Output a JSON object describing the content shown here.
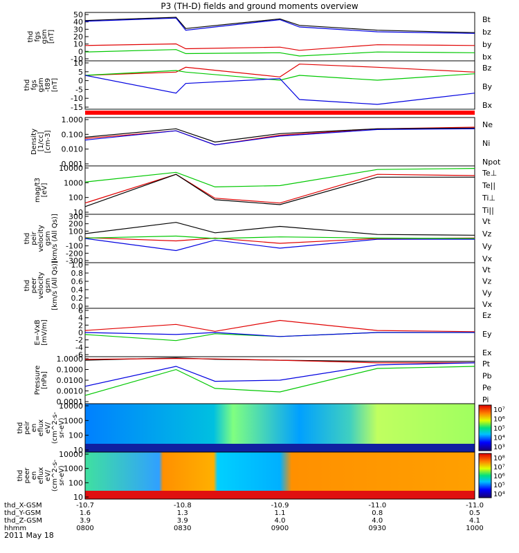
{
  "title": "P3 (TH-D) fields and ground moments overview",
  "date": "2011 May 18",
  "colors": {
    "black": "#000000",
    "red": "#e00000",
    "green": "#00c800",
    "blue": "#0000e0",
    "bar": "#ff0000"
  },
  "chart_data": {
    "type": "line",
    "x_axis": {
      "labels_rows": [
        {
          "name": "thd_X-GSM",
          "values": [
            "-10.7",
            "-10.8",
            "-10.9",
            "-11.0",
            "-11.0"
          ]
        },
        {
          "name": "thd_Y-GSM",
          "values": [
            "1.6",
            "1.3",
            "1.1",
            "0.8",
            "0.5"
          ]
        },
        {
          "name": "thd_Z-GSM",
          "values": [
            "3.9",
            "3.9",
            "4.0",
            "4.0",
            "4.1"
          ]
        },
        {
          "name": "hhmm",
          "values": [
            "0800",
            "0830",
            "0900",
            "0930",
            "1000"
          ]
        }
      ],
      "range": [
        "0800",
        "1000"
      ]
    },
    "panels": [
      {
        "id": "fgs-gsm",
        "ylabel": [
          "thd",
          "fgs",
          "gsm",
          "[nT]"
        ],
        "ticks": [
          "50",
          "40",
          "30",
          "20",
          "10",
          "0",
          "-10"
        ],
        "ylim": [
          -10,
          50
        ],
        "legend": [
          {
            "name": "Bt",
            "color": "black"
          },
          {
            "name": "bz",
            "color": "red"
          },
          {
            "name": "by",
            "color": "green"
          },
          {
            "name": "bx",
            "color": "blue"
          }
        ],
        "series": [
          {
            "name": "Bt",
            "color": "black",
            "x": [
              "0800",
              "0828",
              "0831",
              "0900",
              "0906",
              "0930",
              "1000"
            ],
            "y": [
              40,
              44,
              30,
              42,
              34,
              28,
              25
            ]
          },
          {
            "name": "bz",
            "color": "red",
            "x": [
              "0800",
              "0828",
              "0831",
              "0900",
              "0906",
              "0930",
              "1000"
            ],
            "y": [
              9,
              11,
              5,
              7,
              3,
              10,
              9
            ]
          },
          {
            "name": "by",
            "color": "green",
            "x": [
              "0800",
              "0828",
              "0831",
              "0900",
              "0906",
              "0930",
              "1000"
            ],
            "y": [
              1,
              4,
              -1,
              0,
              -4,
              1,
              0
            ]
          },
          {
            "name": "bx",
            "color": "blue",
            "x": [
              "0800",
              "0828",
              "0831",
              "0900",
              "0906",
              "0930",
              "1000"
            ],
            "y": [
              39,
              43,
              28,
              41,
              32,
              26,
              24
            ]
          }
        ]
      },
      {
        "id": "fgs-dsl",
        "ylabel": [
          "thd",
          "fgs",
          "gsm",
          "-t89",
          "[nT]"
        ],
        "ticks": [
          "10",
          "5",
          "0",
          "-5",
          "-10",
          "-15"
        ],
        "ylim": [
          -18,
          12
        ],
        "legend": [
          {
            "name": "Bz",
            "color": "red"
          },
          {
            "name": "By",
            "color": "green"
          },
          {
            "name": "Bx",
            "color": "blue"
          }
        ],
        "series": [
          {
            "name": "Bz",
            "color": "red",
            "x": [
              "0800",
              "0828",
              "0831",
              "0900",
              "0906",
              "0930",
              "1000"
            ],
            "y": [
              3,
              5,
              8,
              2,
              10,
              8,
              5
            ]
          },
          {
            "name": "By",
            "color": "green",
            "x": [
              "0800",
              "0828",
              "0831",
              "0900",
              "0906",
              "0930",
              "1000"
            ],
            "y": [
              3,
              6,
              5,
              0,
              3,
              0,
              4
            ]
          },
          {
            "name": "Bx",
            "color": "blue",
            "x": [
              "0800",
              "0828",
              "0831",
              "0900",
              "0906",
              "0930",
              "1000"
            ],
            "y": [
              3,
              -8,
              -2,
              1,
              -12,
              -15,
              -8
            ]
          }
        ]
      },
      {
        "id": "density",
        "ylabel": [
          "Density",
          "[1/cc]",
          "[cm-3]"
        ],
        "ticks": [
          "1.000",
          "0.100",
          "0.010",
          "0.001"
        ],
        "ylim": [
          0.001,
          1
        ],
        "log": true,
        "legend": [
          {
            "name": "Ne",
            "color": "red"
          },
          {
            "name": "Ni",
            "color": "black"
          },
          {
            "name": "Npot",
            "color": "blue"
          }
        ],
        "series": [
          {
            "name": "Ne",
            "color": "red",
            "x": [
              "0800",
              "0828",
              "0840",
              "0900",
              "0930",
              "1000"
            ],
            "y": [
              0.05,
              0.15,
              0.02,
              0.08,
              0.2,
              0.25
            ]
          },
          {
            "name": "Ni",
            "color": "black",
            "x": [
              "0800",
              "0828",
              "0840",
              "0900",
              "0930",
              "1000"
            ],
            "y": [
              0.06,
              0.2,
              0.03,
              0.1,
              0.2,
              0.22
            ]
          },
          {
            "name": "Npot",
            "color": "blue",
            "x": [
              "0800",
              "0828",
              "0840",
              "0900",
              "0930",
              "1000"
            ],
            "y": [
              0.04,
              0.15,
              0.02,
              0.07,
              0.18,
              0.2
            ]
          }
        ]
      },
      {
        "id": "temperature",
        "ylabel": [
          "mag/t3",
          "[eV]"
        ],
        "ticks": [
          "10000",
          "1000",
          "100",
          "10"
        ],
        "ylim": [
          10,
          10000
        ],
        "log": true,
        "legend": [
          {
            "name": "Te⊥",
            "color": "red"
          },
          {
            "name": "Te||",
            "color": "black"
          },
          {
            "name": "Ti⊥",
            "color": "black"
          },
          {
            "name": "Ti||",
            "color": "green"
          }
        ],
        "series": [
          {
            "name": "Te⊥",
            "color": "red",
            "x": [
              "0800",
              "0828",
              "0840",
              "0900",
              "0930",
              "1000"
            ],
            "y": [
              50,
              3000,
              100,
              50,
              3000,
              2500
            ]
          },
          {
            "name": "Te||",
            "color": "black",
            "x": [
              "0800",
              "0828",
              "0840",
              "0900",
              "0930",
              "1000"
            ],
            "y": [
              30,
              3000,
              80,
              40,
              2000,
              2000
            ]
          },
          {
            "name": "Ti||",
            "color": "green",
            "x": [
              "0800",
              "0828",
              "0840",
              "0900",
              "0930",
              "1000"
            ],
            "y": [
              1000,
              4000,
              500,
              600,
              6000,
              7000
            ]
          }
        ]
      },
      {
        "id": "peir-velocity",
        "ylabel": [
          "thd",
          "peir",
          "velocity",
          "gsm",
          "[km/s (All Qs)]"
        ],
        "ticks": [
          "300",
          "200",
          "100",
          "0",
          "-100",
          "-200",
          "-300"
        ],
        "ylim": [
          -300,
          300
        ],
        "legend": [
          {
            "name": "Vt",
            "color": "black"
          },
          {
            "name": "Vz",
            "color": "red"
          },
          {
            "name": "Vy",
            "color": "green"
          },
          {
            "name": "Vx",
            "color": "blue"
          }
        ],
        "series": [
          {
            "name": "Vt",
            "color": "black",
            "x": [
              "0800",
              "0828",
              "0840",
              "0900",
              "0930",
              "1000"
            ],
            "y": [
              60,
              200,
              70,
              150,
              50,
              40
            ]
          },
          {
            "name": "Vz",
            "color": "red",
            "x": [
              "0800",
              "0828",
              "0840",
              "0900",
              "0930",
              "1000"
            ],
            "y": [
              10,
              -30,
              5,
              -60,
              0,
              5
            ]
          },
          {
            "name": "Vy",
            "color": "green",
            "x": [
              "0800",
              "0828",
              "0840",
              "0900",
              "0930",
              "1000"
            ],
            "y": [
              5,
              30,
              0,
              20,
              5,
              0
            ]
          },
          {
            "name": "Vx",
            "color": "blue",
            "x": [
              "0800",
              "0828",
              "0840",
              "0900",
              "0930",
              "1000"
            ],
            "y": [
              0,
              -150,
              -20,
              -120,
              -10,
              -10
            ]
          }
        ]
      },
      {
        "id": "peer-velocity",
        "ylabel": [
          "thd",
          "peer",
          "velocity",
          "gsm",
          "[km/s (All Qs)]"
        ],
        "ticks": [
          "1.0",
          "0.8",
          "0.6",
          "0.4",
          "0.2",
          "0.0"
        ],
        "ylim": [
          0,
          1
        ],
        "legend": [
          {
            "name": "Vt",
            "color": "black"
          },
          {
            "name": "Vz",
            "color": "red"
          },
          {
            "name": "Vy",
            "color": "green"
          },
          {
            "name": "Vx",
            "color": "blue"
          }
        ],
        "series": []
      },
      {
        "id": "efield",
        "ylabel": [
          "E=-VxB",
          "[mV/m]"
        ],
        "ticks": [
          "6",
          "4",
          "2",
          "0",
          "-2",
          "-4",
          "-6"
        ],
        "ylim": [
          -6,
          6
        ],
        "legend": [
          {
            "name": "Ez",
            "color": "red"
          },
          {
            "name": "Ey",
            "color": "green"
          },
          {
            "name": "Ex",
            "color": "blue"
          }
        ],
        "series": [
          {
            "name": "Ez",
            "color": "red",
            "x": [
              "0800",
              "0828",
              "0840",
              "0900",
              "0930",
              "1000"
            ],
            "y": [
              0.5,
              2,
              0.3,
              3,
              0.5,
              0.2
            ]
          },
          {
            "name": "Ey",
            "color": "green",
            "x": [
              "0800",
              "0828",
              "0840",
              "0900",
              "0930",
              "1000"
            ],
            "y": [
              -0.5,
              -2,
              -0.3,
              -1,
              0,
              0
            ]
          },
          {
            "name": "Ex",
            "color": "blue",
            "x": [
              "0800",
              "0828",
              "0840",
              "0900",
              "0930",
              "1000"
            ],
            "y": [
              0,
              -0.5,
              0,
              -1,
              0,
              0
            ]
          }
        ]
      },
      {
        "id": "pressure",
        "ylabel": [
          "Pressure",
          "[nPa]"
        ],
        "ticks": [
          "1.0000",
          "0.1000",
          "0.0100",
          "0.0010",
          "0.0001"
        ],
        "ylim": [
          0.0001,
          1
        ],
        "log": true,
        "legend": [
          {
            "name": "Pt",
            "color": "black"
          },
          {
            "name": "Pb",
            "color": "red"
          },
          {
            "name": "Pe",
            "color": "green"
          },
          {
            "name": "Pi",
            "color": "blue"
          }
        ],
        "series": [
          {
            "name": "Pt",
            "color": "black",
            "x": [
              "0800",
              "0828",
              "0840",
              "0900",
              "0930",
              "1000"
            ],
            "y": [
              0.5,
              0.8,
              0.6,
              0.5,
              0.4,
              0.4
            ]
          },
          {
            "name": "Pb",
            "color": "red",
            "x": [
              "0800",
              "0828",
              "0840",
              "0900",
              "0930",
              "1000"
            ],
            "y": [
              0.6,
              0.7,
              0.65,
              0.5,
              0.3,
              0.3
            ]
          },
          {
            "name": "Pe",
            "color": "green",
            "x": [
              "0800",
              "0828",
              "0840",
              "0900",
              "0930",
              "1000"
            ],
            "y": [
              0.0005,
              0.08,
              0.002,
              0.001,
              0.1,
              0.15
            ]
          },
          {
            "name": "Pi",
            "color": "blue",
            "x": [
              "0800",
              "0828",
              "0840",
              "0900",
              "0930",
              "1000"
            ],
            "y": [
              0.003,
              0.15,
              0.008,
              0.01,
              0.2,
              0.3
            ]
          }
        ]
      },
      {
        "id": "peir-spec",
        "type": "heatmap",
        "ylabel": [
          "thd",
          "peir",
          "en",
          "eflux",
          "eV/",
          "(cm^2-s-",
          "sr-eV)"
        ],
        "ticks": [
          "10000",
          "1000",
          "100",
          "10"
        ],
        "colorbar_ticks": [
          "10⁷",
          "10⁶",
          "10⁵",
          "10⁴",
          "10³"
        ]
      },
      {
        "id": "peer-spec",
        "type": "heatmap",
        "ylabel": [
          "thd",
          "peer",
          "en",
          "eflux",
          "eV/",
          "(cm^2-s-",
          "sr-eV)"
        ],
        "ticks": [
          "10000",
          "1000",
          "100",
          "10"
        ],
        "colorbar_ticks": [
          "10⁸",
          "10⁷",
          "10⁶",
          "10⁵",
          "10⁴"
        ]
      }
    ]
  }
}
